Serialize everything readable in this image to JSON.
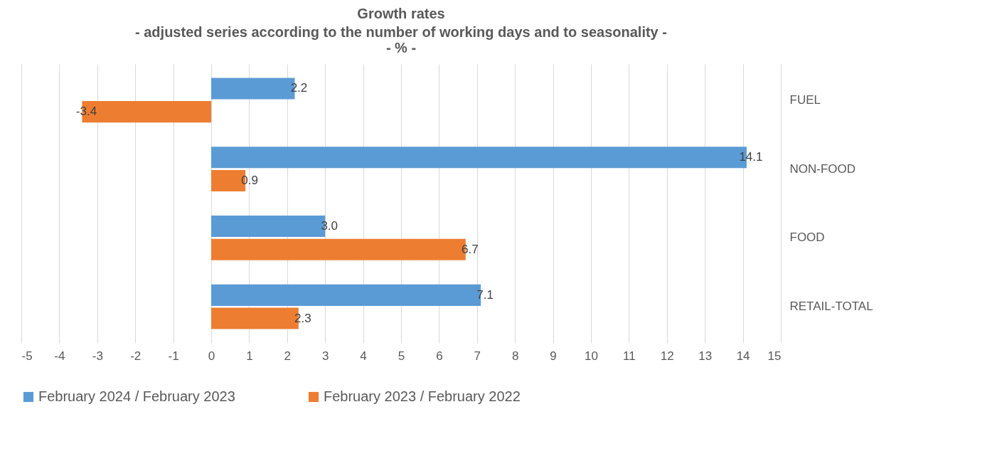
{
  "chart_data": {
    "type": "bar",
    "orientation": "horizontal",
    "title": "Growth rates",
    "subtitle": [
      "- adjusted series according to the number of working days and to seasonality -",
      "- % -"
    ],
    "categories": [
      "FUEL",
      "NON-FOOD",
      "FOOD",
      "RETAIL-TOTAL"
    ],
    "series": [
      {
        "name": "February 2024 / February 2023",
        "color": "#5b9bd5",
        "values": [
          2.2,
          14.1,
          3,
          7.1
        ],
        "value_labels": [
          "2.2",
          "14.1",
          "3.0",
          "7.1"
        ]
      },
      {
        "name": "February 2023 / February 2022",
        "color": "#ed7d31",
        "values": [
          -3.4,
          0.9,
          6.7,
          2.3
        ],
        "value_labels": [
          "-3.4",
          "0.9",
          "6.7",
          "2.3"
        ]
      }
    ],
    "xlim": [
      -5,
      15
    ],
    "xticks": [
      -5,
      -4,
      -3,
      -2,
      -1,
      0,
      1,
      2,
      3,
      4,
      5,
      6,
      7,
      8,
      9,
      10,
      11,
      12,
      13,
      14,
      15
    ],
    "grid": "x",
    "legend": "bottom"
  }
}
